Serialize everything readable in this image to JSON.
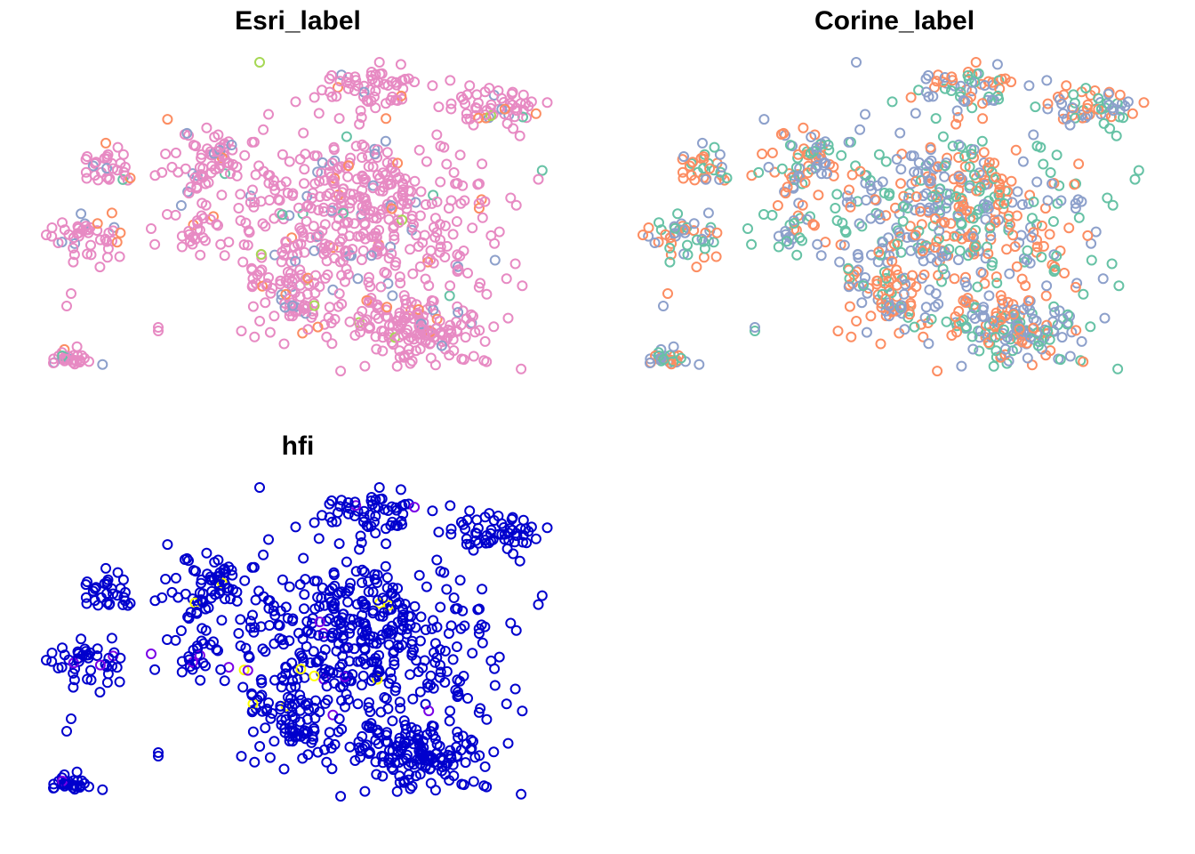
{
  "figure": {
    "panels": [
      {
        "id": "esri",
        "title": "Esri_label"
      },
      {
        "id": "corine",
        "title": "Corine_label"
      },
      {
        "id": "hfi",
        "title": "hfi"
      }
    ]
  },
  "chart_data": [
    {
      "type": "scatter",
      "title": "Esri_label",
      "xlabel": "",
      "ylabel": "",
      "axes": false,
      "grid": false,
      "legend": "none",
      "marker": "open-circle",
      "colors": {
        "dominant": "#e78ac3",
        "minor": [
          "#8da0cb",
          "#fc8d62",
          "#a6d854",
          "#66c2a5"
        ]
      },
      "color_shares": [
        0.9,
        0.05,
        0.03,
        0.01,
        0.01
      ]
    },
    {
      "type": "scatter",
      "title": "Corine_label",
      "xlabel": "",
      "ylabel": "",
      "axes": false,
      "grid": false,
      "legend": "none",
      "marker": "open-circle",
      "colors": {
        "classes": [
          "#fc8d62",
          "#8da0cb",
          "#66c2a5"
        ]
      },
      "color_shares": [
        0.38,
        0.36,
        0.26
      ]
    },
    {
      "type": "scatter",
      "title": "hfi",
      "xlabel": "",
      "ylabel": "",
      "axes": false,
      "grid": false,
      "legend": "none",
      "marker": "open-circle",
      "colors": {
        "low": "#0000cd",
        "mid": "#7a00e6",
        "high": "#ffff00"
      },
      "color_shares": [
        0.97,
        0.02,
        0.01
      ]
    }
  ]
}
